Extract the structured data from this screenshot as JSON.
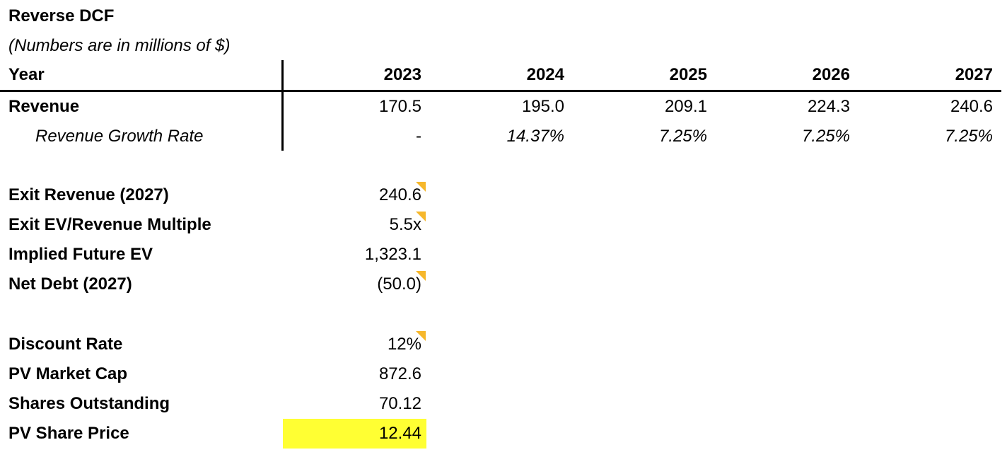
{
  "title": "Reverse DCF",
  "subtitle": "(Numbers are in millions of $)",
  "table": {
    "header_label": "Year",
    "years": [
      "2023",
      "2024",
      "2025",
      "2026",
      "2027"
    ],
    "revenue_label": "Revenue",
    "revenue": [
      "170.5",
      "195.0",
      "209.1",
      "224.3",
      "240.6"
    ],
    "growth_label": "Revenue Growth Rate",
    "growth": [
      "-",
      "14.37%",
      "7.25%",
      "7.25%",
      "7.25%"
    ]
  },
  "valuation": [
    {
      "label": "Exit Revenue (2027)",
      "value": "240.6",
      "flag": true
    },
    {
      "label": "Exit EV/Revenue Multiple",
      "value": "5.5x",
      "flag": true
    },
    {
      "label": "Implied Future EV",
      "value": "1,323.1",
      "flag": false
    },
    {
      "label": "Net Debt (2027)",
      "value": "(50.0)",
      "flag": true
    }
  ],
  "pricing": [
    {
      "label": "Discount Rate",
      "value": "12%",
      "flag": true
    },
    {
      "label": "PV Market Cap",
      "value": "872.6",
      "flag": false
    },
    {
      "label": "Shares Outstanding",
      "value": "70.12",
      "flag": false
    },
    {
      "label": "PV Share Price",
      "value": "12.44",
      "flag": false,
      "highlight": true
    }
  ],
  "colors": {
    "flag": "#f6b72b",
    "highlight": "#ffff33"
  }
}
